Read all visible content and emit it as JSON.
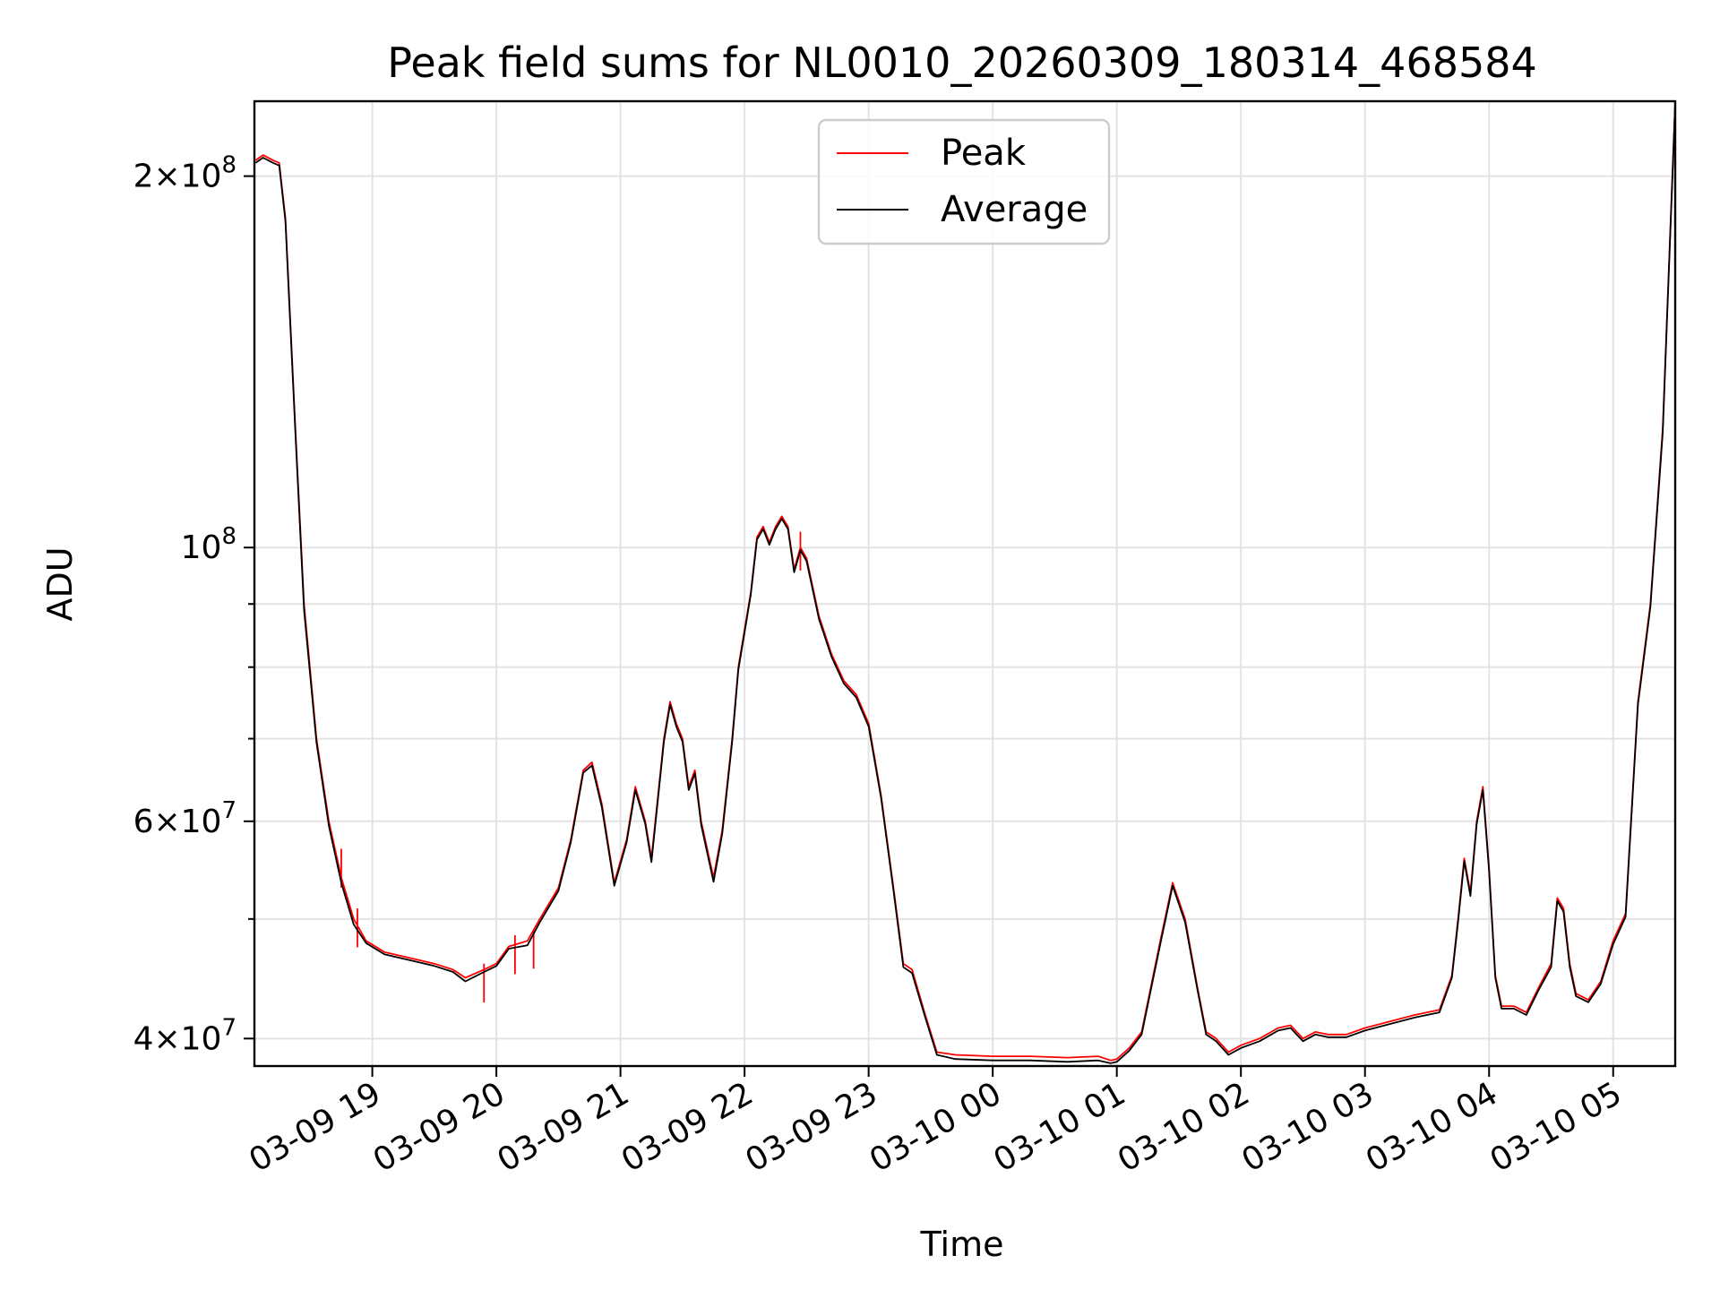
{
  "chart_data": {
    "type": "line",
    "title": "Peak field sums for NL0010_20260309_180314_468584",
    "xlabel": "Time",
    "ylabel": "ADU",
    "yscale": "log",
    "grid": true,
    "legend_position": "top-center",
    "xlim": [
      -0.95,
      10.5
    ],
    "ylim": [
      38000000,
      230000000
    ],
    "x_unit": "hours since 03-09 19:00",
    "x_ticks": [
      {
        "value": 0,
        "label": "03-09 19"
      },
      {
        "value": 1,
        "label": "03-09 20"
      },
      {
        "value": 2,
        "label": "03-09 21"
      },
      {
        "value": 3,
        "label": "03-09 22"
      },
      {
        "value": 4,
        "label": "03-09 23"
      },
      {
        "value": 5,
        "label": "03-10 00"
      },
      {
        "value": 6,
        "label": "03-10 01"
      },
      {
        "value": 7,
        "label": "03-10 02"
      },
      {
        "value": 8,
        "label": "03-10 03"
      },
      {
        "value": 9,
        "label": "03-10 04"
      },
      {
        "value": 10,
        "label": "03-10 05"
      }
    ],
    "y_ticks_major": [
      {
        "value": 40000000,
        "mant": "4",
        "exp": "7"
      },
      {
        "value": 60000000,
        "mant": "6",
        "exp": "7"
      },
      {
        "value": 100000000,
        "mant": "",
        "exp": "8"
      },
      {
        "value": 200000000,
        "mant": "2",
        "exp": "8"
      }
    ],
    "y_ticks_minor": [
      50000000,
      70000000,
      80000000,
      90000000
    ],
    "series": [
      {
        "name": "Peak",
        "color": "#ff0000",
        "points": [
          [
            -0.94,
            206000000
          ],
          [
            -0.88,
            208000000
          ],
          [
            -0.8,
            206000000
          ],
          [
            -0.75,
            205000000
          ],
          [
            -0.7,
            185000000
          ],
          [
            -0.62,
            125000000
          ],
          [
            -0.55,
            90000000
          ],
          [
            -0.45,
            70000000
          ],
          [
            -0.35,
            60000000
          ],
          [
            -0.25,
            54000000
          ],
          [
            -0.15,
            50000000
          ],
          [
            -0.05,
            48000000
          ],
          [
            0.1,
            47000000
          ],
          [
            0.3,
            46500000
          ],
          [
            0.5,
            46000000
          ],
          [
            0.65,
            45500000
          ],
          [
            0.75,
            44800000
          ],
          [
            0.9,
            45500000
          ],
          [
            1.0,
            46000000
          ],
          [
            1.1,
            47500000
          ],
          [
            1.25,
            48000000
          ],
          [
            1.35,
            50000000
          ],
          [
            1.5,
            53000000
          ],
          [
            1.6,
            58000000
          ],
          [
            1.7,
            66000000
          ],
          [
            1.77,
            67000000
          ],
          [
            1.85,
            62000000
          ],
          [
            1.95,
            53500000
          ],
          [
            2.05,
            58000000
          ],
          [
            2.12,
            64000000
          ],
          [
            2.2,
            60000000
          ],
          [
            2.25,
            56000000
          ],
          [
            2.35,
            70000000
          ],
          [
            2.4,
            75000000
          ],
          [
            2.45,
            72000000
          ],
          [
            2.5,
            70000000
          ],
          [
            2.55,
            64000000
          ],
          [
            2.6,
            66000000
          ],
          [
            2.65,
            60000000
          ],
          [
            2.75,
            54000000
          ],
          [
            2.82,
            59000000
          ],
          [
            2.9,
            70000000
          ],
          [
            2.95,
            80000000
          ],
          [
            3.05,
            92000000
          ],
          [
            3.1,
            102000000
          ],
          [
            3.15,
            104000000
          ],
          [
            3.2,
            101000000
          ],
          [
            3.25,
            104000000
          ],
          [
            3.3,
            106000000
          ],
          [
            3.35,
            104000000
          ],
          [
            3.4,
            96000000
          ],
          [
            3.45,
            100000000
          ],
          [
            3.5,
            98000000
          ],
          [
            3.6,
            88000000
          ],
          [
            3.7,
            82000000
          ],
          [
            3.8,
            78000000
          ],
          [
            3.9,
            76000000
          ],
          [
            4.0,
            72000000
          ],
          [
            4.1,
            63000000
          ],
          [
            4.2,
            53000000
          ],
          [
            4.28,
            46000000
          ],
          [
            4.35,
            45500000
          ],
          [
            4.45,
            42000000
          ],
          [
            4.55,
            39000000
          ],
          [
            4.7,
            38800000
          ],
          [
            5.0,
            38700000
          ],
          [
            5.3,
            38700000
          ],
          [
            5.6,
            38600000
          ],
          [
            5.85,
            38700000
          ],
          [
            5.95,
            38400000
          ],
          [
            6.0,
            38500000
          ],
          [
            6.1,
            39300000
          ],
          [
            6.2,
            40500000
          ],
          [
            6.35,
            48000000
          ],
          [
            6.45,
            53500000
          ],
          [
            6.55,
            50000000
          ],
          [
            6.65,
            44000000
          ],
          [
            6.72,
            40500000
          ],
          [
            6.8,
            40000000
          ],
          [
            6.9,
            39000000
          ],
          [
            7.0,
            39500000
          ],
          [
            7.15,
            40000000
          ],
          [
            7.3,
            40800000
          ],
          [
            7.4,
            41000000
          ],
          [
            7.5,
            40000000
          ],
          [
            7.6,
            40500000
          ],
          [
            7.7,
            40300000
          ],
          [
            7.85,
            40300000
          ],
          [
            8.0,
            40800000
          ],
          [
            8.2,
            41300000
          ],
          [
            8.4,
            41800000
          ],
          [
            8.6,
            42200000
          ],
          [
            8.7,
            45000000
          ],
          [
            8.75,
            50000000
          ],
          [
            8.8,
            56000000
          ],
          [
            8.85,
            52500000
          ],
          [
            8.9,
            60000000
          ],
          [
            8.95,
            64000000
          ],
          [
            9.0,
            55000000
          ],
          [
            9.05,
            45000000
          ],
          [
            9.1,
            42500000
          ],
          [
            9.2,
            42500000
          ],
          [
            9.3,
            42000000
          ],
          [
            9.4,
            44000000
          ],
          [
            9.5,
            46000000
          ],
          [
            9.55,
            52000000
          ],
          [
            9.6,
            51000000
          ],
          [
            9.65,
            46000000
          ],
          [
            9.7,
            43500000
          ],
          [
            9.8,
            43000000
          ],
          [
            9.9,
            44500000
          ],
          [
            10.0,
            48000000
          ],
          [
            10.1,
            50500000
          ],
          [
            10.2,
            75000000
          ],
          [
            10.3,
            90000000
          ],
          [
            10.4,
            125000000
          ],
          [
            10.5,
            230000000
          ]
        ],
        "spikes": [
          [
            -0.25,
            57000000
          ],
          [
            -0.12,
            51000000
          ],
          [
            3.45,
            103000000
          ],
          [
            1.15,
            48500000
          ],
          [
            1.3,
            49000000
          ],
          [
            0.9,
            46000000
          ]
        ]
      },
      {
        "name": "Average",
        "color": "#000000",
        "points": [
          [
            -0.94,
            205000000
          ],
          [
            -0.88,
            207000000
          ],
          [
            -0.8,
            205000000
          ],
          [
            -0.75,
            204000000
          ],
          [
            -0.7,
            184000000
          ],
          [
            -0.62,
            124000000
          ],
          [
            -0.55,
            89000000
          ],
          [
            -0.45,
            69500000
          ],
          [
            -0.35,
            59500000
          ],
          [
            -0.25,
            53500000
          ],
          [
            -0.15,
            49500000
          ],
          [
            -0.05,
            47800000
          ],
          [
            0.1,
            46800000
          ],
          [
            0.3,
            46300000
          ],
          [
            0.5,
            45800000
          ],
          [
            0.65,
            45300000
          ],
          [
            0.75,
            44500000
          ],
          [
            0.9,
            45300000
          ],
          [
            1.0,
            45800000
          ],
          [
            1.1,
            47300000
          ],
          [
            1.25,
            47600000
          ],
          [
            1.35,
            49700000
          ],
          [
            1.5,
            52700000
          ],
          [
            1.6,
            57700000
          ],
          [
            1.7,
            65700000
          ],
          [
            1.77,
            66600000
          ],
          [
            1.85,
            61600000
          ],
          [
            1.95,
            53200000
          ],
          [
            2.05,
            57700000
          ],
          [
            2.12,
            63600000
          ],
          [
            2.2,
            59700000
          ],
          [
            2.25,
            55600000
          ],
          [
            2.35,
            69600000
          ],
          [
            2.4,
            74600000
          ],
          [
            2.45,
            71600000
          ],
          [
            2.5,
            69600000
          ],
          [
            2.55,
            63600000
          ],
          [
            2.6,
            65600000
          ],
          [
            2.65,
            59600000
          ],
          [
            2.75,
            53600000
          ],
          [
            2.82,
            58600000
          ],
          [
            2.9,
            69600000
          ],
          [
            2.95,
            79600000
          ],
          [
            3.05,
            91600000
          ],
          [
            3.1,
            101500000
          ],
          [
            3.15,
            103500000
          ],
          [
            3.2,
            100500000
          ],
          [
            3.25,
            103500000
          ],
          [
            3.3,
            105500000
          ],
          [
            3.35,
            103500000
          ],
          [
            3.4,
            95500000
          ],
          [
            3.45,
            99500000
          ],
          [
            3.5,
            97500000
          ],
          [
            3.6,
            87500000
          ],
          [
            3.7,
            81600000
          ],
          [
            3.8,
            77600000
          ],
          [
            3.9,
            75600000
          ],
          [
            4.0,
            71600000
          ],
          [
            4.1,
            62700000
          ],
          [
            4.2,
            52700000
          ],
          [
            4.28,
            45700000
          ],
          [
            4.35,
            45200000
          ],
          [
            4.45,
            41800000
          ],
          [
            4.55,
            38800000
          ],
          [
            4.7,
            38500000
          ],
          [
            5.0,
            38400000
          ],
          [
            5.3,
            38400000
          ],
          [
            5.6,
            38300000
          ],
          [
            5.85,
            38400000
          ],
          [
            5.95,
            38200000
          ],
          [
            6.0,
            38300000
          ],
          [
            6.1,
            39100000
          ],
          [
            6.2,
            40300000
          ],
          [
            6.35,
            47700000
          ],
          [
            6.45,
            53200000
          ],
          [
            6.55,
            49700000
          ],
          [
            6.65,
            43800000
          ],
          [
            6.72,
            40300000
          ],
          [
            6.8,
            39800000
          ],
          [
            6.9,
            38800000
          ],
          [
            7.0,
            39300000
          ],
          [
            7.15,
            39800000
          ],
          [
            7.3,
            40600000
          ],
          [
            7.4,
            40800000
          ],
          [
            7.5,
            39800000
          ],
          [
            7.6,
            40300000
          ],
          [
            7.7,
            40100000
          ],
          [
            7.85,
            40100000
          ],
          [
            8.0,
            40600000
          ],
          [
            8.2,
            41100000
          ],
          [
            8.4,
            41600000
          ],
          [
            8.6,
            42000000
          ],
          [
            8.7,
            44800000
          ],
          [
            8.75,
            49700000
          ],
          [
            8.8,
            55700000
          ],
          [
            8.85,
            52200000
          ],
          [
            8.9,
            59700000
          ],
          [
            8.95,
            63600000
          ],
          [
            9.0,
            54700000
          ],
          [
            9.05,
            44800000
          ],
          [
            9.1,
            42300000
          ],
          [
            9.2,
            42300000
          ],
          [
            9.3,
            41800000
          ],
          [
            9.4,
            43800000
          ],
          [
            9.5,
            45700000
          ],
          [
            9.55,
            51700000
          ],
          [
            9.6,
            50700000
          ],
          [
            9.65,
            45700000
          ],
          [
            9.7,
            43300000
          ],
          [
            9.8,
            42800000
          ],
          [
            9.9,
            44300000
          ],
          [
            10.0,
            47700000
          ],
          [
            10.1,
            50200000
          ],
          [
            10.2,
            74600000
          ],
          [
            10.3,
            89500000
          ],
          [
            10.4,
            124000000
          ],
          [
            10.5,
            229000000
          ]
        ]
      }
    ]
  }
}
